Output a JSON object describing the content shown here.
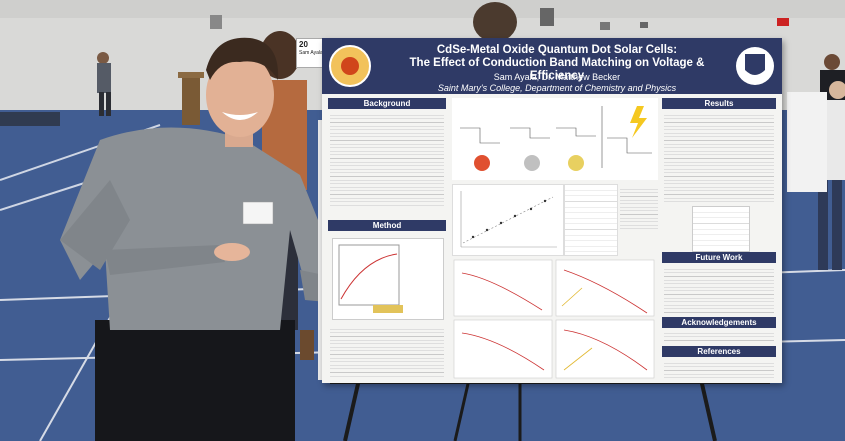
{
  "badge": {
    "number": "20",
    "name": "Sam Ayala"
  },
  "poster": {
    "title_line1": "CdSe-Metal Oxide Quantum Dot Solar Cells:",
    "title_line2": "The Effect of Conduction Band Matching on Voltage & Efficiency",
    "authors": "Sam Ayala, Dr. Matthew Becker",
    "affiliation": "Saint Mary's College, Department of Chemistry and Physics",
    "sections": {
      "background": "Background",
      "method": "Method",
      "results": "Results",
      "future_work": "Future Work",
      "acknowledgements": "Acknowledgements",
      "references": "References"
    }
  },
  "colors": {
    "poster_header": "#2f3a66",
    "floor": "#3f5a8c",
    "wall": "#dcdcda",
    "shirt": "#8a8f93"
  }
}
